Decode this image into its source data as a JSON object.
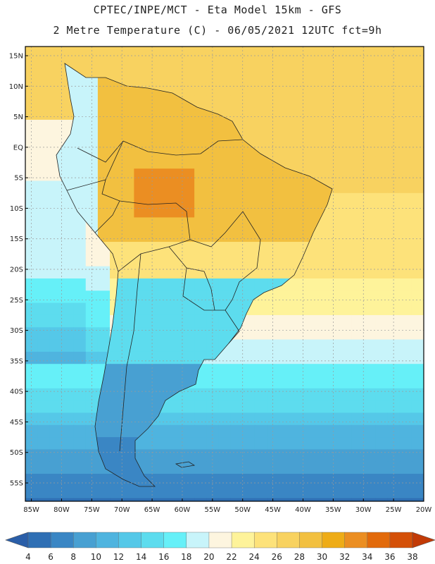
{
  "header": {
    "line1": "CPTEC/INPE/MCT -  Eta Model 15km - GFS",
    "line2": "2 Metre Temperature (C) - 06/05/2021 12UTC fct=9h"
  },
  "axes": {
    "lat_labels": [
      "15N",
      "10N",
      "5N",
      "EQ",
      "5S",
      "10S",
      "15S",
      "20S",
      "25S",
      "30S",
      "35S",
      "40S",
      "45S",
      "50S",
      "55S"
    ],
    "lon_labels": [
      "85W",
      "80W",
      "75W",
      "70W",
      "65W",
      "60W",
      "55W",
      "50W",
      "45W",
      "40W",
      "35W",
      "30W",
      "25W",
      "20W"
    ]
  },
  "colorbar": {
    "ticks": [
      "4",
      "6",
      "8",
      "10",
      "12",
      "14",
      "16",
      "18",
      "20",
      "22",
      "24",
      "26",
      "28",
      "30",
      "32",
      "34",
      "36",
      "38"
    ],
    "colors": [
      "#2f6fb4",
      "#3a86c4",
      "#48a0d2",
      "#4fb4df",
      "#55c8e8",
      "#5ddcee",
      "#66f0f8",
      "#c8f4fa",
      "#fdf5df",
      "#fef39a",
      "#fde27a",
      "#f8d260",
      "#f2c040",
      "#eeac17",
      "#eb8e22",
      "#e26a0b",
      "#d45008",
      "#c23a06"
    ]
  },
  "chart_data": {
    "type": "heatmap",
    "title": "2 Metre Temperature (C)",
    "lat_ticks": [
      15,
      10,
      5,
      0,
      -5,
      -10,
      -15,
      -20,
      -25,
      -30,
      -35,
      -40,
      -45,
      -50,
      -55
    ],
    "lon_ticks": [
      -85,
      -80,
      -75,
      -70,
      -65,
      -60,
      -55,
      -50,
      -45,
      -40,
      -35,
      -30,
      -25,
      -20
    ],
    "lat_range": [
      -58,
      16.5
    ],
    "lon_range": [
      -86,
      -20
    ],
    "color_levels": [
      4,
      6,
      8,
      10,
      12,
      14,
      16,
      18,
      20,
      22,
      24,
      26,
      28,
      30,
      32,
      34,
      36,
      38
    ],
    "grid": true
  }
}
